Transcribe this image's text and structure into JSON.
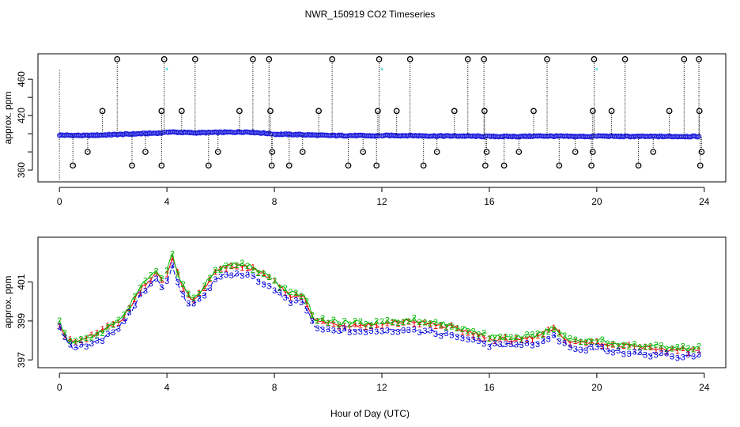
{
  "figure": {
    "title": "NWR_150919  CO2 Timeseries",
    "xlabel": "Hour of Day (UTC)"
  },
  "colors": {
    "outlier": "#000000",
    "flag": "#00cccc",
    "main": "#2222dd",
    "series1": "#ee0000",
    "series2": "#00bb00",
    "series3": "#0000dd"
  },
  "chart_data": [
    {
      "id": "top",
      "type": "scatter",
      "title": "",
      "xlabel": "",
      "ylabel": "approx. ppm",
      "xlim": [
        -0.8,
        24.8
      ],
      "ylim": [
        347,
        488
      ],
      "xticks": [
        "0",
        "4",
        "8",
        "12",
        "16",
        "20",
        "24"
      ],
      "yticks": [
        "360",
        "380",
        "400",
        "420",
        "440",
        "460"
      ],
      "yticklabels": [
        "360",
        "420",
        "460"
      ],
      "baseline": [
        [
          0,
          398.5
        ],
        [
          1,
          398
        ],
        [
          2,
          399
        ],
        [
          3,
          400
        ],
        [
          3.9,
          401
        ],
        [
          4,
          402
        ],
        [
          5,
          401
        ],
        [
          6,
          401.5
        ],
        [
          7,
          402
        ],
        [
          7.9,
          400
        ],
        [
          8,
          399.5
        ],
        [
          9,
          399
        ],
        [
          10,
          398
        ],
        [
          11,
          398
        ],
        [
          11.9,
          397.5
        ],
        [
          12,
          398
        ],
        [
          13,
          398
        ],
        [
          14,
          397.5
        ],
        [
          15,
          397.5
        ],
        [
          15.9,
          397
        ],
        [
          16,
          397
        ],
        [
          17,
          397
        ],
        [
          18,
          397.5
        ],
        [
          19,
          397
        ],
        [
          19.9,
          397
        ],
        [
          20,
          397.5
        ],
        [
          21,
          397
        ],
        [
          22,
          397
        ],
        [
          23,
          397
        ],
        [
          23.8,
          397
        ]
      ],
      "segments": [
        [
          0,
          3.9
        ],
        [
          4,
          7.9
        ],
        [
          8,
          11.9
        ],
        [
          12,
          15.9
        ],
        [
          16,
          19.9
        ],
        [
          20,
          23.8
        ]
      ],
      "outliers_high": [
        2.15,
        3.9,
        5.05,
        7.2,
        7.8,
        10.15,
        11.9,
        13.05,
        15.2,
        15.8,
        18.15,
        19.9,
        21.05,
        23.25,
        23.8
      ],
      "outliers_mid": [
        1.6,
        3.8,
        4.55,
        6.7,
        7.85,
        9.65,
        11.85,
        12.55,
        14.7,
        15.82,
        17.65,
        19.85,
        20.55,
        22.7,
        23.82
      ],
      "outliers_low": [
        0.5,
        2.7,
        3.8,
        5.55,
        7.9,
        8.55,
        10.75,
        11.8,
        13.55,
        15.85,
        16.55,
        18.6,
        19.8,
        21.55,
        23.85
      ],
      "outliers_vlow": [
        1.05,
        3.2,
        5.9,
        7.92,
        9.05,
        11.3,
        14.05,
        15.9,
        17.1,
        19.2,
        19.85,
        22.1,
        23.9
      ],
      "flags": [
        [
          4.0,
          470
        ],
        [
          12.0,
          470
        ],
        [
          20.0,
          470
        ]
      ]
    },
    {
      "id": "bottom",
      "type": "line",
      "title": "",
      "xlabel": "Hour of Day (UTC)",
      "ylabel": "approx. ppm",
      "xlim": [
        -0.8,
        24.8
      ],
      "ylim": [
        396.6,
        403.3
      ],
      "xticks": [
        "0",
        "4",
        "8",
        "12",
        "16",
        "20",
        "24"
      ],
      "yticks": [
        "397",
        "399",
        "401"
      ],
      "series": [
        {
          "name": "1",
          "profile": [
            [
              0,
              398.9
            ],
            [
              0.3,
              398.0
            ],
            [
              0.6,
              397.9
            ],
            [
              1.5,
              398.4
            ],
            [
              2.4,
              399.2
            ],
            [
              3.1,
              400.8
            ],
            [
              3.6,
              401.4
            ],
            [
              3.9,
              401.0
            ],
            [
              4.2,
              402.3
            ],
            [
              4.5,
              401.0
            ],
            [
              4.9,
              400.0
            ],
            [
              5.3,
              400.5
            ],
            [
              5.8,
              401.5
            ],
            [
              6.3,
              401.8
            ],
            [
              7.0,
              401.8
            ],
            [
              7.8,
              401.2
            ],
            [
              8.3,
              400.6
            ],
            [
              8.6,
              400.3
            ],
            [
              9.1,
              400.3
            ],
            [
              9.5,
              399.0
            ],
            [
              10.5,
              398.8
            ],
            [
              11.9,
              398.8
            ],
            [
              12,
              398.8
            ],
            [
              13.0,
              399.0
            ],
            [
              14.5,
              398.7
            ],
            [
              15.9,
              398.2
            ],
            [
              16,
              398.1
            ],
            [
              17.0,
              398.0
            ],
            [
              17.8,
              398.2
            ],
            [
              18.4,
              398.6
            ],
            [
              19.0,
              397.9
            ],
            [
              19.9,
              397.9
            ],
            [
              20,
              397.9
            ],
            [
              21.0,
              397.7
            ],
            [
              22.0,
              397.6
            ],
            [
              23.0,
              397.5
            ],
            [
              23.8,
              397.5
            ]
          ]
        },
        {
          "name": "2",
          "profile": [
            [
              0,
              399.0
            ],
            [
              0.3,
              398.1
            ],
            [
              0.6,
              397.9
            ],
            [
              1.5,
              398.4
            ],
            [
              2.4,
              399.3
            ],
            [
              3.1,
              400.9
            ],
            [
              3.6,
              401.5
            ],
            [
              3.9,
              401.1
            ],
            [
              4.2,
              402.4
            ],
            [
              4.5,
              401.1
            ],
            [
              4.9,
              400.1
            ],
            [
              5.3,
              400.6
            ],
            [
              5.8,
              401.6
            ],
            [
              6.3,
              401.9
            ],
            [
              7.0,
              401.9
            ],
            [
              7.8,
              401.3
            ],
            [
              8.3,
              400.7
            ],
            [
              8.6,
              400.4
            ],
            [
              9.1,
              400.4
            ],
            [
              9.5,
              399.1
            ],
            [
              10.5,
              398.9
            ],
            [
              11.9,
              398.9
            ],
            [
              12,
              398.9
            ],
            [
              13.0,
              399.1
            ],
            [
              14.5,
              398.8
            ],
            [
              15.9,
              398.3
            ],
            [
              16,
              398.2
            ],
            [
              17.0,
              398.1
            ],
            [
              17.8,
              398.3
            ],
            [
              18.4,
              398.7
            ],
            [
              19.0,
              398.0
            ],
            [
              19.9,
              398.0
            ],
            [
              20,
              398.0
            ],
            [
              21.0,
              397.8
            ],
            [
              22.0,
              397.7
            ],
            [
              23.0,
              397.6
            ],
            [
              23.8,
              397.6
            ]
          ]
        },
        {
          "name": "3",
          "profile": [
            [
              0,
              398.6
            ],
            [
              0.3,
              397.8
            ],
            [
              0.6,
              397.6
            ],
            [
              1.5,
              398.0
            ],
            [
              2.4,
              398.9
            ],
            [
              3.1,
              400.5
            ],
            [
              3.6,
              401.1
            ],
            [
              3.9,
              400.6
            ],
            [
              4.2,
              401.9
            ],
            [
              4.5,
              400.5
            ],
            [
              4.9,
              399.7
            ],
            [
              5.3,
              400.2
            ],
            [
              5.8,
              401.2
            ],
            [
              6.3,
              401.4
            ],
            [
              7.0,
              401.4
            ],
            [
              7.8,
              400.8
            ],
            [
              8.3,
              400.3
            ],
            [
              8.6,
              400.0
            ],
            [
              9.1,
              400.0
            ],
            [
              9.5,
              398.6
            ],
            [
              10.5,
              398.5
            ],
            [
              11.9,
              398.5
            ],
            [
              12,
              398.5
            ],
            [
              13.0,
              398.6
            ],
            [
              14.5,
              398.3
            ],
            [
              15.9,
              397.9
            ],
            [
              16,
              397.8
            ],
            [
              17.0,
              397.7
            ],
            [
              17.8,
              397.9
            ],
            [
              18.4,
              398.2
            ],
            [
              19.0,
              397.6
            ],
            [
              19.9,
              397.6
            ],
            [
              20,
              397.6
            ],
            [
              21.0,
              397.4
            ],
            [
              22.0,
              397.3
            ],
            [
              23.0,
              397.2
            ],
            [
              23.8,
              397.2
            ]
          ]
        }
      ]
    }
  ]
}
